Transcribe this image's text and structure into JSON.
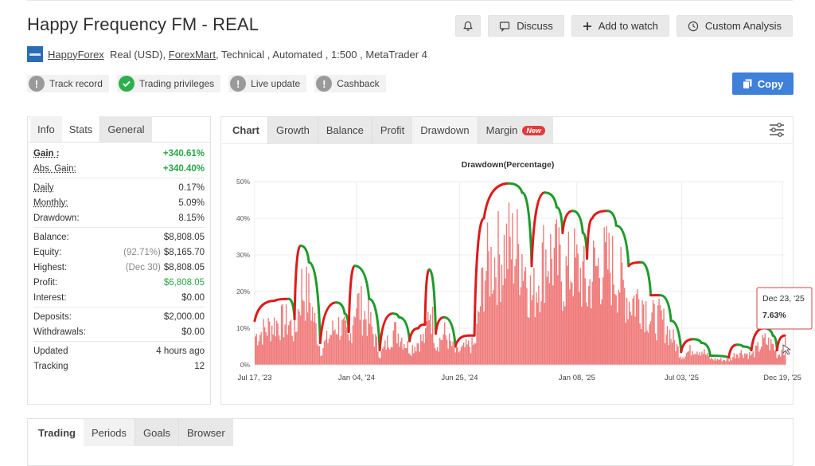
{
  "header": {
    "title": "Happy Frequency FM - REAL",
    "actions": {
      "discuss": "Discuss",
      "add_watch": "Add to watch",
      "custom_analysis": "Custom Analysis"
    }
  },
  "meta": {
    "broker_name": "HappyForex",
    "account": "Real (USD),",
    "platform_link": "ForexMart",
    "details": ", Technical , Automated , 1:500 , MetaTrader 4"
  },
  "badges": {
    "track_record": "Track record",
    "trading_privileges": "Trading privileges",
    "live_update": "Live update",
    "cashback": "Cashback"
  },
  "copy_label": "Copy",
  "stats": {
    "tabs": [
      "Info",
      "Stats",
      "General"
    ],
    "gain": {
      "label": "Gain :",
      "value": "+340.61%"
    },
    "abs_gain": {
      "label": "Abs. Gain:",
      "value": "+340.40%"
    },
    "daily": {
      "label": "Daily",
      "value": "0.17%"
    },
    "monthly": {
      "label": "Monthly:",
      "value": "5.09%"
    },
    "drawdown": {
      "label": "Drawdown:",
      "value": "8.15%"
    },
    "balance": {
      "label": "Balance:",
      "value": "$8,808.05"
    },
    "equity": {
      "label": "Equity:",
      "sub": "(92.71%)",
      "value": "$8,165.70"
    },
    "highest": {
      "label": "Highest:",
      "sub": "(Dec 30)",
      "value": "$8,808.05"
    },
    "profit": {
      "label": "Profit:",
      "value": "$6,808.05"
    },
    "interest": {
      "label": "Interest:",
      "value": "$0.00"
    },
    "deposits": {
      "label": "Deposits:",
      "value": "$2,000.00"
    },
    "withdrawals": {
      "label": "Withdrawals:",
      "value": "$0.00"
    },
    "updated": {
      "label": "Updated",
      "value": "4 hours ago"
    },
    "tracking": {
      "label": "Tracking",
      "value": "12"
    }
  },
  "chart_tabs": [
    "Chart",
    "Growth",
    "Balance",
    "Profit",
    "Drawdown",
    "Margin"
  ],
  "new_badge": "New",
  "bottom_tabs": [
    "Trading",
    "Periods",
    "Goals",
    "Browser"
  ],
  "colors": {
    "bar": "#f07a7a",
    "rising": "#e01919",
    "falling": "#1f9a2b",
    "accent": "#3f80d9"
  },
  "tooltip": {
    "date": "Dec 23, '25",
    "value": "7.63%"
  },
  "chart_data": {
    "type": "bar",
    "title": "Drawdown(Percentage)",
    "y_unit": "%",
    "ylim": [
      0,
      50
    ],
    "y_ticks": [
      0,
      10,
      20,
      30,
      40,
      50
    ],
    "x_range": [
      "2023-07-17",
      "2025-12-23"
    ],
    "x_ticks": [
      {
        "date": "2023-07-17",
        "label": "Jul 17, '23"
      },
      {
        "date": "2024-01-04",
        "label": "Jan 04, '24"
      },
      {
        "date": "2024-06-25",
        "label": "Jun 25, '24"
      },
      {
        "date": "2025-01-08",
        "label": "Jan 08, '25"
      },
      {
        "date": "2025-07-03",
        "label": "Jul 03, '25"
      },
      {
        "date": "2025-12-19",
        "label": "Dec 19, '25"
      }
    ],
    "grid": true,
    "envelope": [
      {
        "date": "2023-07-17",
        "value": 12.0
      },
      {
        "date": "2023-08-20",
        "value": 17.5
      },
      {
        "date": "2023-09-12",
        "value": 18.0
      },
      {
        "date": "2023-09-22",
        "value": 12.5
      },
      {
        "date": "2023-10-02",
        "value": 32.5
      },
      {
        "date": "2023-10-16",
        "value": 28.0
      },
      {
        "date": "2023-11-04",
        "value": 6.0
      },
      {
        "date": "2023-12-01",
        "value": 17.0
      },
      {
        "date": "2023-12-15",
        "value": 14.0
      },
      {
        "date": "2023-12-22",
        "value": 9.0
      },
      {
        "date": "2024-01-01",
        "value": 27.0
      },
      {
        "date": "2024-01-25",
        "value": 18.0
      },
      {
        "date": "2024-02-12",
        "value": 4.0
      },
      {
        "date": "2024-03-05",
        "value": 14.0
      },
      {
        "date": "2024-03-15",
        "value": 13.0
      },
      {
        "date": "2024-04-02",
        "value": 6.5
      },
      {
        "date": "2024-04-17",
        "value": 10.0
      },
      {
        "date": "2024-04-28",
        "value": 11.0
      },
      {
        "date": "2024-05-05",
        "value": 26.0
      },
      {
        "date": "2024-05-16",
        "value": 8.5
      },
      {
        "date": "2024-05-30",
        "value": 13.0
      },
      {
        "date": "2024-06-18",
        "value": 5.0
      },
      {
        "date": "2024-07-10",
        "value": 8.0
      },
      {
        "date": "2024-07-20",
        "value": 8.0
      },
      {
        "date": "2024-08-05",
        "value": 40.0
      },
      {
        "date": "2024-09-15",
        "value": 49.5
      },
      {
        "date": "2024-10-08",
        "value": 47.0
      },
      {
        "date": "2024-10-24",
        "value": 27.0
      },
      {
        "date": "2024-11-15",
        "value": 47.0
      },
      {
        "date": "2024-12-05",
        "value": 43.0
      },
      {
        "date": "2024-12-15",
        "value": 36.0
      },
      {
        "date": "2025-01-01",
        "value": 42.0
      },
      {
        "date": "2025-01-18",
        "value": 36.0
      },
      {
        "date": "2025-01-25",
        "value": 29.0
      },
      {
        "date": "2025-02-03",
        "value": 40.0
      },
      {
        "date": "2025-02-28",
        "value": 42.0
      },
      {
        "date": "2025-03-15",
        "value": 38.0
      },
      {
        "date": "2025-04-05",
        "value": 27.0
      },
      {
        "date": "2025-04-26",
        "value": 28.0
      },
      {
        "date": "2025-05-12",
        "value": 19.0
      },
      {
        "date": "2025-05-28",
        "value": 19.0
      },
      {
        "date": "2025-06-15",
        "value": 12.0
      },
      {
        "date": "2025-07-02",
        "value": 3.5
      },
      {
        "date": "2025-07-22",
        "value": 7.0
      },
      {
        "date": "2025-08-05",
        "value": 6.0
      },
      {
        "date": "2025-08-20",
        "value": 2.5
      },
      {
        "date": "2025-09-20",
        "value": 2.0
      },
      {
        "date": "2025-10-04",
        "value": 5.5
      },
      {
        "date": "2025-10-14",
        "value": 5.0
      },
      {
        "date": "2025-10-28",
        "value": 4.0
      },
      {
        "date": "2025-11-18",
        "value": 10.0
      },
      {
        "date": "2025-12-03",
        "value": 8.0
      },
      {
        "date": "2025-12-10",
        "value": 4.0
      },
      {
        "date": "2025-12-23",
        "value": 8.0
      }
    ]
  }
}
